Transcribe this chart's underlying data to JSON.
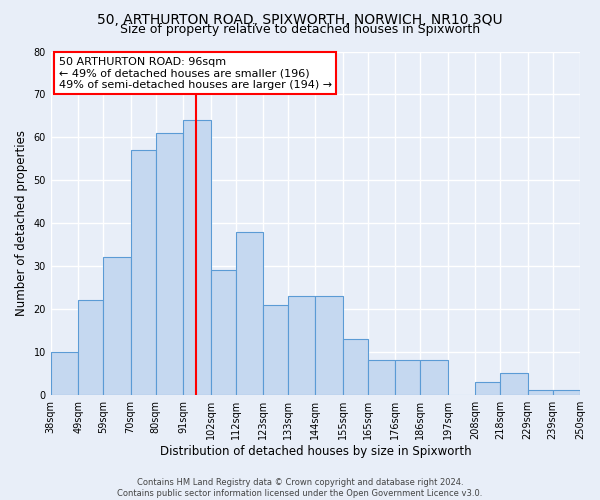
{
  "title": "50, ARTHURTON ROAD, SPIXWORTH, NORWICH, NR10 3QU",
  "subtitle": "Size of property relative to detached houses in Spixworth",
  "xlabel": "Distribution of detached houses by size in Spixworth",
  "ylabel": "Number of detached properties",
  "bar_color": "#c5d8f0",
  "bar_edge_color": "#5b9bd5",
  "background_color": "#e8eef8",
  "fig_background_color": "#e8eef8",
  "grid_color": "#ffffff",
  "vline_x": 96,
  "vline_color": "red",
  "bin_edges": [
    38,
    49,
    59,
    70,
    80,
    91,
    102,
    112,
    123,
    133,
    144,
    155,
    165,
    176,
    186,
    197,
    208,
    218,
    229,
    239,
    250
  ],
  "bar_heights": [
    10,
    22,
    32,
    57,
    61,
    64,
    29,
    38,
    21,
    23,
    23,
    13,
    8,
    8,
    8,
    0,
    3,
    5,
    1,
    1
  ],
  "xlim": [
    38,
    250
  ],
  "ylim": [
    0,
    80
  ],
  "yticks": [
    0,
    10,
    20,
    30,
    40,
    50,
    60,
    70,
    80
  ],
  "xtick_labels": [
    "38sqm",
    "49sqm",
    "59sqm",
    "70sqm",
    "80sqm",
    "91sqm",
    "102sqm",
    "112sqm",
    "123sqm",
    "133sqm",
    "144sqm",
    "155sqm",
    "165sqm",
    "176sqm",
    "186sqm",
    "197sqm",
    "208sqm",
    "218sqm",
    "229sqm",
    "239sqm",
    "250sqm"
  ],
  "annotation_title": "50 ARTHURTON ROAD: 96sqm",
  "annotation_line1": "← 49% of detached houses are smaller (196)",
  "annotation_line2": "49% of semi-detached houses are larger (194) →",
  "footer_line1": "Contains HM Land Registry data © Crown copyright and database right 2024.",
  "footer_line2": "Contains public sector information licensed under the Open Government Licence v3.0.",
  "title_fontsize": 10,
  "subtitle_fontsize": 9,
  "axis_label_fontsize": 8.5,
  "tick_fontsize": 7,
  "annotation_fontsize": 8,
  "footer_fontsize": 6
}
